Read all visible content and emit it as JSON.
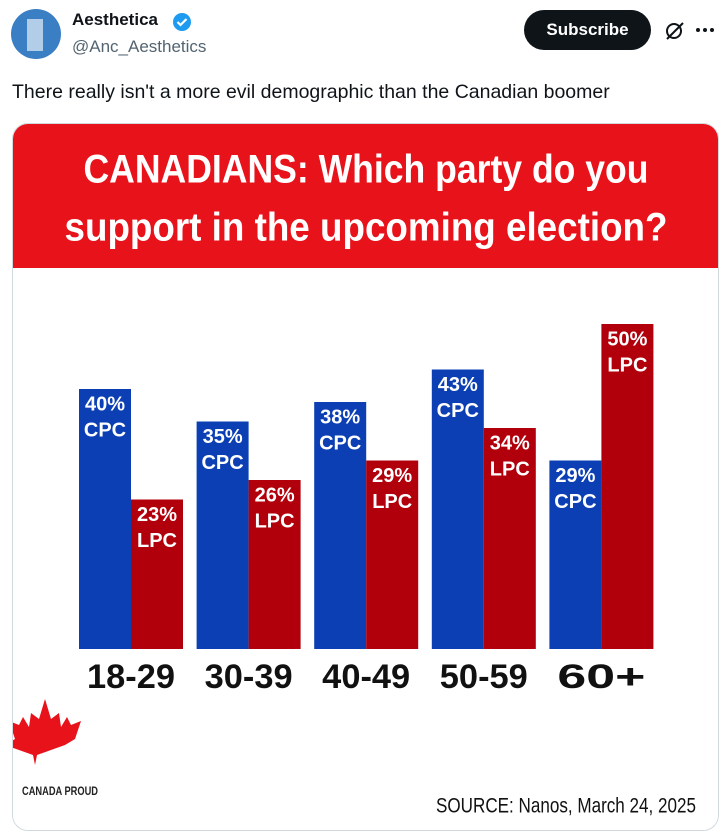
{
  "post": {
    "author_name": "Aesthetica",
    "handle": "@Anc_Aesthetics",
    "button": "Subscribe",
    "text": "There really isn't a more evil demographic than the Canadian boomer"
  },
  "chart_data": {
    "type": "bar",
    "title": [
      "CANADIANS: Which party do you",
      "support in the upcoming election?"
    ],
    "categories": [
      "18-29",
      "30-39",
      "40-49",
      "50-59",
      "60+"
    ],
    "series": [
      {
        "name": "CPC",
        "color": "#0b3fb3",
        "values": [
          40,
          35,
          38,
          43,
          29
        ],
        "value_labels": [
          "40%",
          "35%",
          "38%",
          "43%",
          "29%"
        ]
      },
      {
        "name": "LPC",
        "color": "#b1000b",
        "values": [
          23,
          26,
          29,
          34,
          50
        ],
        "value_labels": [
          "23%",
          "26%",
          "29%",
          "34%",
          "50%"
        ]
      }
    ],
    "logo_text": "CANADA PROUD",
    "source": "SOURCE: Nanos, March 24, 2025"
  }
}
